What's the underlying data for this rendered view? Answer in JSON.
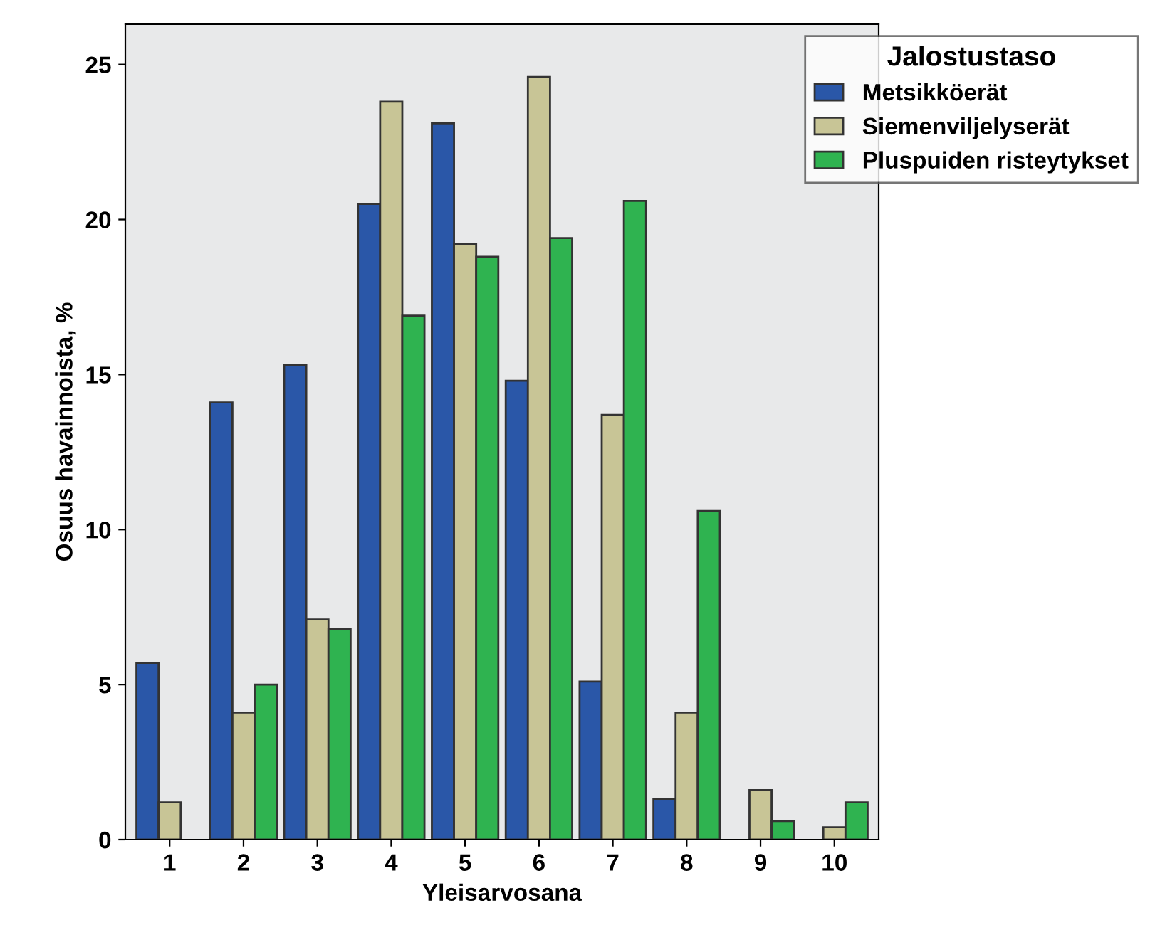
{
  "chart_data": {
    "type": "bar",
    "xlabel": "Yleisarvosana",
    "ylabel": "Osuus havainnoista, %",
    "legend_title": "Jalostustaso",
    "categories": [
      "1",
      "2",
      "3",
      "4",
      "5",
      "6",
      "7",
      "8",
      "9",
      "10"
    ],
    "series": [
      {
        "name": "Metsikköerät",
        "color": "#2a57a8",
        "values": [
          5.7,
          14.1,
          15.3,
          20.5,
          23.1,
          14.8,
          5.1,
          1.3,
          null,
          null
        ]
      },
      {
        "name": "Siemenviljelyserät",
        "color": "#c8c596",
        "values": [
          1.2,
          4.1,
          7.1,
          23.8,
          19.2,
          24.6,
          13.7,
          4.1,
          1.6,
          0.4
        ]
      },
      {
        "name": "Pluspuiden risteytykset",
        "color": "#2fb350",
        "values": [
          null,
          5.0,
          6.8,
          16.9,
          18.8,
          19.4,
          20.6,
          10.6,
          0.6,
          1.2
        ]
      }
    ],
    "ylim": [
      0,
      26.3
    ],
    "yticks": [
      0,
      5,
      10,
      15,
      20,
      25
    ],
    "grid": false,
    "legend": "top right"
  }
}
